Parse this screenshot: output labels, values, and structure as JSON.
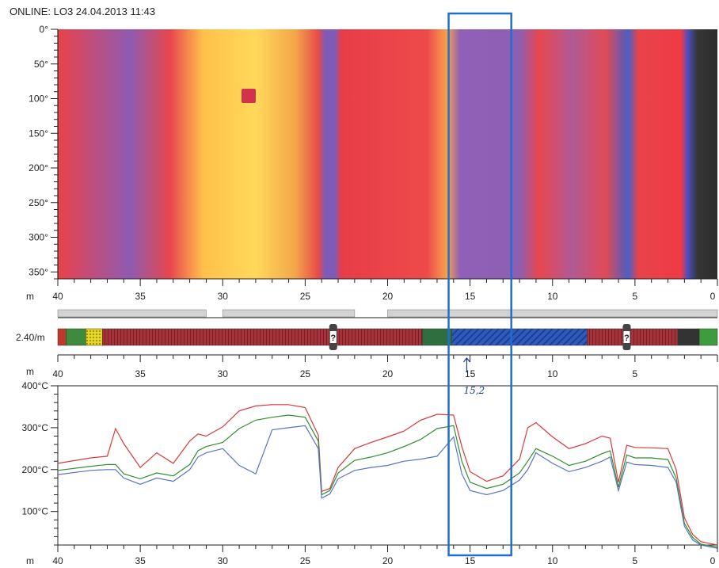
{
  "header": {
    "title": "ONLINE: LO3 24.04.2013 11:43"
  },
  "colors": {
    "series_red": "#d83a3a",
    "series_green": "#2f8f2f",
    "series_blue": "#5a74c4",
    "highlight_box": "#1f6fd1",
    "thermal_hot": "#ffd24a",
    "thermal_warm": "#ee3a45",
    "thermal_cool": "#8a5fb0",
    "thermal_cold": "#3a3a3a"
  },
  "thermal_map": {
    "y_ticks": [
      "0°",
      "50°",
      "100°",
      "150°",
      "200°",
      "250°",
      "300°",
      "350°"
    ],
    "x_unit": "m",
    "x_ticks": [
      "40",
      "35",
      "30",
      "25",
      "20",
      "15",
      "10",
      "5",
      "0"
    ]
  },
  "lining": {
    "label": "2.40/m",
    "x_unit": "m",
    "x_ticks": [
      "40",
      "35",
      "30",
      "25",
      "20",
      "15",
      "10",
      "5"
    ],
    "marker_symbol": "?",
    "segments": [
      {
        "from": 40,
        "to": 39.5,
        "color": "#c0392b"
      },
      {
        "from": 39.5,
        "to": 38.3,
        "color": "#3e8b3e"
      },
      {
        "from": 38.3,
        "to": 37.3,
        "color": "#e8d620"
      },
      {
        "from": 37.3,
        "to": 17.9,
        "color": "#a5333b"
      },
      {
        "from": 17.9,
        "to": 16.1,
        "color": "#2f6f3f"
      },
      {
        "from": 16.1,
        "to": 7.9,
        "color": "#2f5bbf"
      },
      {
        "from": 7.9,
        "to": 2.4,
        "color": "#a5333b"
      },
      {
        "from": 2.4,
        "to": 1.1,
        "color": "#333333"
      },
      {
        "from": 1.1,
        "to": 0,
        "color": "#3e9b3e"
      }
    ],
    "top_bars": [
      {
        "from": 40,
        "to": 31.0
      },
      {
        "from": 30.0,
        "to": 22.0
      },
      {
        "from": 20.0,
        "to": 0
      }
    ],
    "markers_at_m": [
      23.3,
      5.5
    ]
  },
  "annotation": {
    "handwritten": "15,2",
    "arrow_at_m": 15.2
  },
  "highlight": {
    "from_m": 16.3,
    "to_m": 12.5
  },
  "chart_data": {
    "type": "line",
    "title": "",
    "xlabel": "m",
    "ylabel": "",
    "x_ticks": [
      "40",
      "35",
      "30",
      "25",
      "20",
      "15",
      "10",
      "5",
      "0"
    ],
    "y_ticks": [
      "400°C",
      "300°C",
      "200°C",
      "100°C"
    ],
    "xlim": [
      40,
      0
    ],
    "ylim": [
      20,
      400
    ],
    "grid": false,
    "x": [
      40,
      38,
      37,
      36.5,
      36,
      35,
      34,
      33,
      32,
      31.5,
      31,
      30,
      29,
      28,
      27,
      26,
      25,
      24.2,
      24,
      23.5,
      23,
      22,
      21,
      20,
      19,
      18,
      17,
      16,
      15.5,
      15,
      14,
      13,
      12,
      11.5,
      11,
      10,
      9,
      8,
      7,
      6.5,
      6,
      5.5,
      5,
      4,
      3,
      2.5,
      2,
      1.5,
      1,
      0
    ],
    "series": [
      {
        "name": "",
        "values": [
          215,
          228,
          232,
          298,
          262,
          205,
          240,
          215,
          268,
          285,
          280,
          302,
          340,
          352,
          355,
          355,
          348,
          282,
          148,
          155,
          205,
          250,
          265,
          278,
          292,
          318,
          332,
          330,
          255,
          195,
          172,
          185,
          225,
          300,
          312,
          278,
          250,
          262,
          280,
          275,
          170,
          258,
          253,
          252,
          250,
          200,
          85,
          45,
          28,
          20
        ]
      },
      {
        "name": "",
        "values": [
          198,
          208,
          212,
          212,
          190,
          178,
          192,
          185,
          212,
          245,
          255,
          265,
          298,
          318,
          325,
          330,
          325,
          268,
          140,
          150,
          192,
          222,
          230,
          240,
          255,
          272,
          298,
          305,
          220,
          170,
          155,
          165,
          192,
          220,
          250,
          232,
          210,
          220,
          238,
          245,
          158,
          235,
          228,
          228,
          224,
          180,
          72,
          38,
          22,
          15
        ]
      },
      {
        "name": "",
        "values": [
          188,
          198,
          200,
          200,
          180,
          165,
          180,
          172,
          200,
          230,
          240,
          250,
          210,
          190,
          295,
          300,
          305,
          250,
          132,
          142,
          178,
          198,
          205,
          210,
          220,
          225,
          232,
          278,
          190,
          150,
          140,
          150,
          175,
          200,
          240,
          215,
          195,
          205,
          220,
          230,
          150,
          218,
          212,
          210,
          205,
          170,
          65,
          32,
          20,
          12
        ]
      }
    ]
  }
}
